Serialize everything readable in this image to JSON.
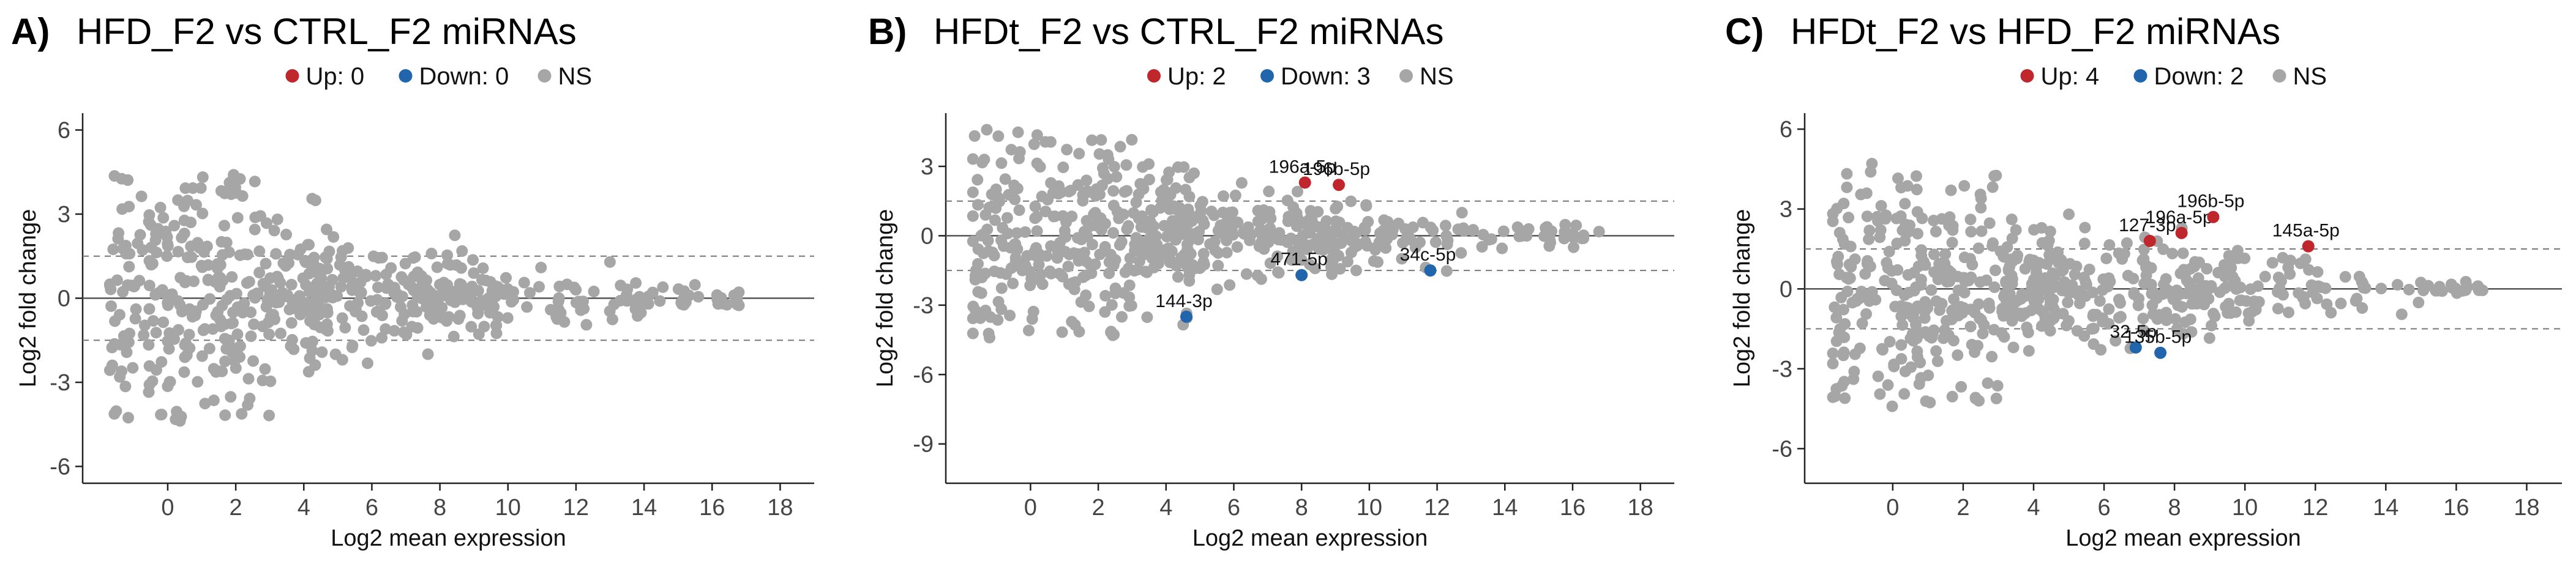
{
  "colors": {
    "up": "#c0272d",
    "down": "#2166ac",
    "ns": "#a6a6a6"
  },
  "chart_data": [
    {
      "type": "scatter",
      "panel_letter": "A)",
      "title": "HFD_F2 vs CTRL_F2 miRNAs",
      "legend": {
        "placement": "top-center",
        "up": "Up: 0",
        "down": "Down: 0",
        "ns": "NS"
      },
      "xlabel": "Log2 mean expression",
      "ylabel": "Log2 fold change",
      "xlim": [
        -2.5,
        19
      ],
      "ylim": [
        -6.6,
        6.6
      ],
      "xticks": [
        0,
        2,
        4,
        6,
        8,
        10,
        12,
        14,
        16,
        18
      ],
      "yticks": [
        -6,
        -3,
        0,
        3,
        6
      ],
      "threshold": 1.5,
      "up_points": [],
      "down_points": [],
      "ns_seed": 11
    },
    {
      "type": "scatter",
      "panel_letter": "B)",
      "title": "HFDt_F2 vs CTRL_F2 miRNAs",
      "legend": {
        "placement": "top-center",
        "up": "Up: 2",
        "down": "Down: 3",
        "ns": "NS"
      },
      "xlabel": "Log2 mean expression",
      "ylabel": "Log2 fold change",
      "xlim": [
        -2.5,
        19
      ],
      "ylim": [
        -10.7,
        5.3
      ],
      "xticks": [
        0,
        2,
        4,
        6,
        8,
        10,
        12,
        14,
        16,
        18
      ],
      "yticks": [
        -9,
        -6,
        -3,
        0,
        3
      ],
      "threshold": 1.5,
      "up_points": [
        {
          "x": 8.1,
          "y": 2.3,
          "label": "196a-5p"
        },
        {
          "x": 9.1,
          "y": 2.2,
          "label": "196b-5p"
        }
      ],
      "down_points": [
        {
          "x": 4.6,
          "y": -3.5,
          "label": "144-3p"
        },
        {
          "x": 8.0,
          "y": -1.7,
          "label": "471-5p"
        },
        {
          "x": 11.8,
          "y": -1.5,
          "label": "34c-5p"
        }
      ],
      "ns_seed": 23
    },
    {
      "type": "scatter",
      "panel_letter": "C)",
      "title": "HFDt_F2 vs HFD_F2 miRNAs",
      "legend": {
        "placement": "top-center",
        "up": "Up: 4",
        "down": "Down: 2",
        "ns": "NS"
      },
      "xlabel": "Log2 mean expression",
      "ylabel": "Log2 fold change",
      "xlim": [
        -2.5,
        19
      ],
      "ylim": [
        -7.3,
        6.6
      ],
      "xticks": [
        0,
        2,
        4,
        6,
        8,
        10,
        12,
        14,
        16,
        18
      ],
      "yticks": [
        -6,
        -3,
        0,
        3,
        6
      ],
      "threshold": 1.5,
      "up_points": [
        {
          "x": 7.3,
          "y": 1.8,
          "label": "127-3p"
        },
        {
          "x": 8.2,
          "y": 2.1,
          "label": "196a-5p"
        },
        {
          "x": 9.1,
          "y": 2.7,
          "label": "196b-5p"
        },
        {
          "x": 11.8,
          "y": 1.6,
          "label": "145a-5p"
        }
      ],
      "down_points": [
        {
          "x": 6.9,
          "y": -2.2,
          "label": "32-5p"
        },
        {
          "x": 7.6,
          "y": -2.4,
          "label": "135b-5p"
        }
      ],
      "ns_seed": 37
    }
  ]
}
